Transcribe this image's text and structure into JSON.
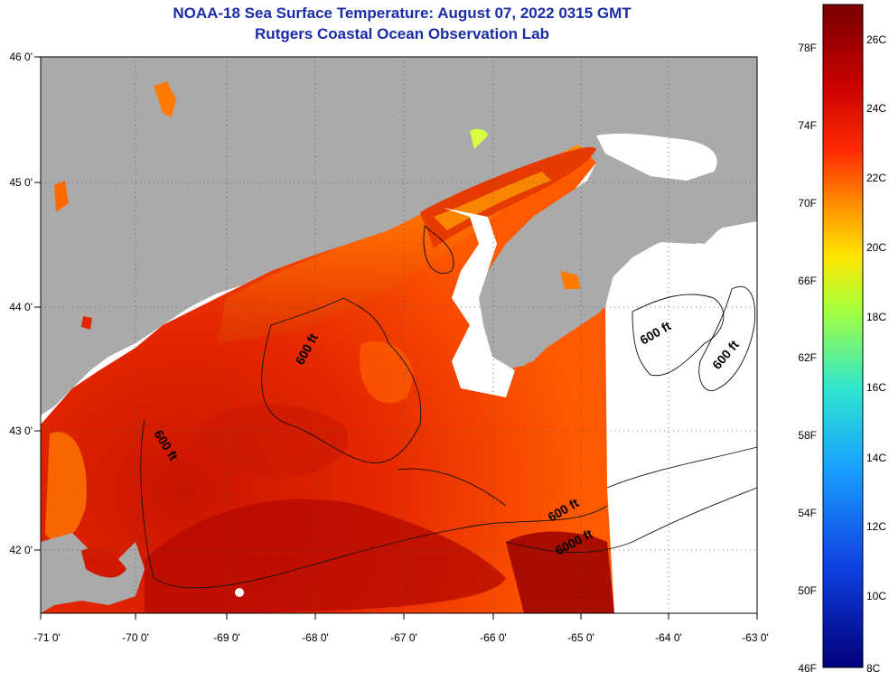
{
  "title_line1": "NOAA-18 Sea Surface Temperature:  August 07, 2022 0315 GMT",
  "title_line2": "Rutgers Coastal Ocean Observation Lab",
  "longitude_labels": [
    "-71 0'",
    "-70 0'",
    "-69 0'",
    "-68 0'",
    "-67 0'",
    "-66 0'",
    "-65 0'",
    "-64 0'",
    "-63 0'"
  ],
  "latitude_labels": [
    "46 0'",
    "45 0'",
    "44 0'",
    "43 0'",
    "42 0'"
  ],
  "contour_labels": [
    "600 ft",
    "600 ft",
    "600 ft",
    "600 ft",
    "600 ft",
    "6000 ft"
  ],
  "colorbar": {
    "fahrenheit_labels": [
      "78F",
      "74F",
      "70F",
      "66F",
      "62F",
      "58F",
      "54F",
      "50F",
      "46F"
    ],
    "celsius_labels": [
      "26C",
      "24C",
      "22C",
      "20C",
      "18C",
      "16C",
      "14C",
      "12C",
      "10C",
      "8C"
    ],
    "colors": [
      "#7a0000",
      "#c80000",
      "#ff3000",
      "#ff8c00",
      "#ffe600",
      "#a6ff3c",
      "#2ee6d0",
      "#18a0ff",
      "#1040e0",
      "#00007a"
    ]
  },
  "colors": {
    "land": "#aaaaaa",
    "cloud": "#ffffff",
    "title": "#1a2ca8"
  }
}
